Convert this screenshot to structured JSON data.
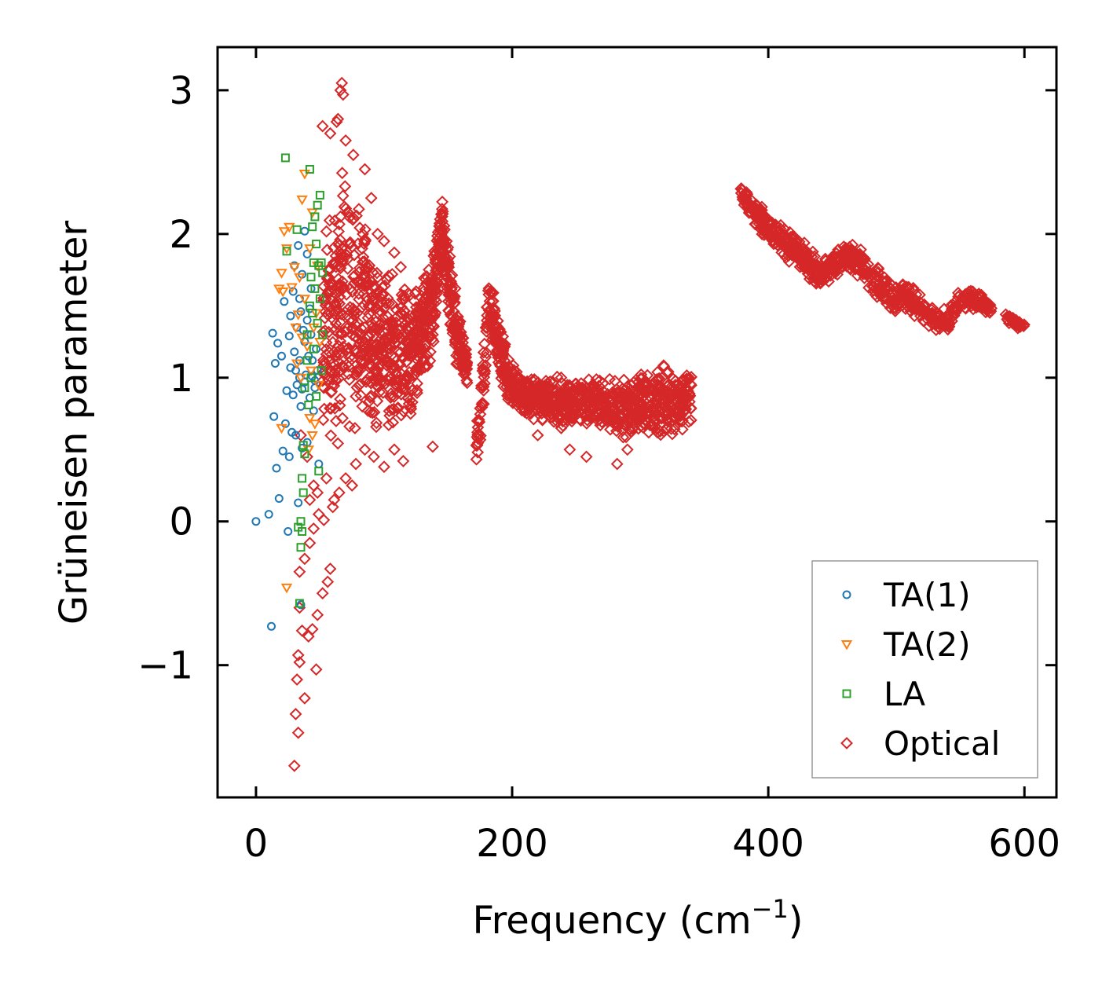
{
  "chart_data": {
    "type": "scatter",
    "title": "",
    "xlabel": "Frequency (cm",
    "xlabel_sup": "−1",
    "xlabel_end": ")",
    "ylabel": "Grüneisen parameter",
    "xlim": [
      -30,
      625
    ],
    "ylim": [
      -1.92,
      3.3
    ],
    "xticks": [
      0,
      200,
      400,
      600
    ],
    "xtick_labels": [
      "0",
      "200",
      "400",
      "600"
    ],
    "yticks": [
      -1,
      0,
      1,
      2,
      3
    ],
    "ytick_labels": [
      "−1",
      "0",
      "1",
      "2",
      "3"
    ],
    "grid": false,
    "legend_position": "lower-right",
    "series": [
      {
        "name": "TA(1)",
        "marker": "circle",
        "color": "#1f77b4",
        "points": [
          [
            0,
            0
          ],
          [
            10,
            0.05
          ],
          [
            12,
            -0.73
          ],
          [
            13,
            1.31
          ],
          [
            14,
            0.73
          ],
          [
            15,
            1.1
          ],
          [
            16,
            0.37
          ],
          [
            17,
            1.24
          ],
          [
            18,
            0.16
          ],
          [
            20,
            1.15
          ],
          [
            21,
            0.49
          ],
          [
            22,
            1.53
          ],
          [
            23,
            0.68
          ],
          [
            24,
            0.91
          ],
          [
            25,
            -0.07
          ],
          [
            26,
            1.29
          ],
          [
            26,
            0.45
          ],
          [
            27,
            1.43
          ],
          [
            27,
            1.07
          ],
          [
            28,
            0.62
          ],
          [
            29,
            1.6
          ],
          [
            29,
            0.88
          ],
          [
            30,
            1.78
          ],
          [
            30,
            1.18
          ],
          [
            31,
            1.05
          ],
          [
            31,
            0.6
          ],
          [
            32,
            1.35
          ],
          [
            32,
            0.95
          ],
          [
            33,
            1.92
          ],
          [
            33,
            0.13
          ],
          [
            34,
            1.55
          ],
          [
            34,
            1.12
          ],
          [
            35,
            1.46
          ],
          [
            35,
            0.8
          ],
          [
            36,
            0.51
          ],
          [
            36,
            1.72
          ],
          [
            37,
            1.33
          ],
          [
            38,
            0.97
          ],
          [
            38,
            1.25
          ],
          [
            39,
            1.02
          ],
          [
            40,
            1.4
          ],
          [
            40,
            0.55
          ],
          [
            41,
            1.15
          ],
          [
            42,
            0.86
          ],
          [
            43,
            1.62
          ],
          [
            43,
            1.3
          ],
          [
            44,
            1.01
          ],
          [
            45,
            0.77
          ],
          [
            46,
            0.93
          ],
          [
            47,
            1.2
          ],
          [
            48,
            1.05
          ],
          [
            49,
            0.4
          ],
          [
            38,
            2.02
          ],
          [
            40,
            1.86
          ],
          [
            34,
            1.0
          ],
          [
            36,
            0.92
          ],
          [
            42,
            1.48
          ],
          [
            44,
            1.12
          ],
          [
            46,
            0.98
          ],
          [
            35,
            -0.58
          ]
        ]
      },
      {
        "name": "TA(2)",
        "marker": "triangle-down",
        "color": "#ff7f0e",
        "points": [
          [
            18,
            1.62
          ],
          [
            20,
            1.73
          ],
          [
            20,
            0.65
          ],
          [
            21,
            1.6
          ],
          [
            22,
            2.02
          ],
          [
            24,
            1.9
          ],
          [
            24,
            -0.46
          ],
          [
            26,
            2.05
          ],
          [
            28,
            1.63
          ],
          [
            30,
            1.77
          ],
          [
            31,
            1.35
          ],
          [
            32,
            1.1
          ],
          [
            33,
            1.44
          ],
          [
            34,
            1.7
          ],
          [
            35,
            1.0
          ],
          [
            36,
            2.24
          ],
          [
            38,
            1.55
          ],
          [
            38,
            2.42
          ],
          [
            40,
            1.22
          ],
          [
            41,
            0.5
          ],
          [
            42,
            1.9
          ],
          [
            43,
            1.05
          ],
          [
            44,
            2.15
          ],
          [
            45,
            1.35
          ],
          [
            46,
            0.68
          ],
          [
            47,
            1.45
          ],
          [
            48,
            1.78
          ],
          [
            49,
            0.95
          ],
          [
            50,
            1.25
          ],
          [
            36,
            1.28
          ],
          [
            42,
            0.72
          ],
          [
            44,
            0.6
          ]
        ]
      },
      {
        "name": "LA",
        "marker": "square",
        "color": "#2ca02c",
        "points": [
          [
            23,
            2.53
          ],
          [
            24,
            1.88
          ],
          [
            32,
            2.03
          ],
          [
            33,
            -0.04
          ],
          [
            34,
            -0.57
          ],
          [
            35,
            -0.18
          ],
          [
            35,
            0.0
          ],
          [
            36,
            -0.07
          ],
          [
            36,
            0.3
          ],
          [
            37,
            0.2
          ],
          [
            37,
            0.53
          ],
          [
            38,
            0.47
          ],
          [
            38,
            0.93
          ],
          [
            40,
            1.12
          ],
          [
            40,
            1.3
          ],
          [
            41,
            0.81
          ],
          [
            42,
            1.5
          ],
          [
            42,
            2.45
          ],
          [
            43,
            1.7
          ],
          [
            43,
            1.0
          ],
          [
            44,
            2.05
          ],
          [
            44,
            1.45
          ],
          [
            45,
            1.8
          ],
          [
            45,
            1.2
          ],
          [
            46,
            2.12
          ],
          [
            46,
            1.62
          ],
          [
            47,
            1.93
          ],
          [
            47,
            0.87
          ],
          [
            48,
            2.2
          ],
          [
            48,
            1.38
          ],
          [
            49,
            1.78
          ],
          [
            49,
            0.35
          ],
          [
            50,
            2.27
          ],
          [
            50,
            1.55
          ],
          [
            51,
            1.05
          ],
          [
            51,
            1.8
          ],
          [
            52,
            1.3
          ],
          [
            52,
            1.73
          ]
        ]
      },
      {
        "name": "Optical",
        "marker": "diamond",
        "color": "#d62728",
        "outliers": [
          [
            30,
            -1.7
          ],
          [
            31,
            -1.34
          ],
          [
            33,
            -1.47
          ],
          [
            32,
            -1.1
          ],
          [
            34,
            -0.98
          ],
          [
            33,
            -0.93
          ],
          [
            36,
            -0.76
          ],
          [
            34,
            -0.6
          ],
          [
            38,
            -1.23
          ],
          [
            41,
            -0.8
          ],
          [
            44,
            -0.75
          ],
          [
            47,
            -1.03
          ],
          [
            48,
            -0.65
          ],
          [
            52,
            -0.5
          ],
          [
            56,
            -0.42
          ],
          [
            58,
            -0.33
          ],
          [
            34,
            -0.35
          ],
          [
            38,
            -0.26
          ],
          [
            42,
            -0.15
          ],
          [
            45,
            -0.05
          ],
          [
            49,
            0.05
          ],
          [
            53,
            0.01
          ],
          [
            60,
            0.1
          ],
          [
            65,
            0.2
          ],
          [
            70,
            0.3
          ],
          [
            75,
            0.25
          ],
          [
            78,
            0.4
          ],
          [
            61,
            0.15
          ],
          [
            66,
            3.0
          ],
          [
            67,
            3.05
          ],
          [
            68,
            2.97
          ],
          [
            64,
            2.8
          ],
          [
            63,
            2.78
          ],
          [
            52,
            2.75
          ],
          [
            58,
            2.7
          ],
          [
            70,
            2.65
          ],
          [
            76,
            2.55
          ],
          [
            85,
            2.45
          ],
          [
            90,
            2.25
          ],
          [
            95,
            2.0
          ],
          [
            100,
            1.95
          ],
          [
            108,
            1.87
          ],
          [
            113,
            1.77
          ],
          [
            125,
            1.6
          ],
          [
            138,
            0.52
          ],
          [
            115,
            0.42
          ],
          [
            108,
            0.5
          ],
          [
            100,
            0.38
          ],
          [
            92,
            0.45
          ],
          [
            85,
            0.5
          ],
          [
            42,
            0.15
          ],
          [
            45,
            0.25
          ],
          [
            55,
            0.3
          ],
          [
            35,
            0.6
          ],
          [
            40,
            0.45
          ],
          [
            48,
            0.2
          ],
          [
            290,
            0.5
          ],
          [
            282,
            0.4
          ],
          [
            258,
            0.45
          ],
          [
            245,
            0.5
          ],
          [
            220,
            0.6
          ]
        ],
        "curves": [
          {
            "x": [
              52,
              60,
              70,
              80,
              90,
              100,
              110,
              120,
              130,
              138,
              145,
              150,
              155,
              160,
              165
            ],
            "center": [
              1.3,
              1.4,
              1.55,
              1.45,
              1.3,
              1.2,
              1.15,
              1.2,
              1.3,
              1.5,
              2.05,
              1.7,
              1.4,
              1.2,
              1.05
            ],
            "spread": [
              0.75,
              0.95,
              1.0,
              0.85,
              0.72,
              0.62,
              0.55,
              0.5,
              0.42,
              0.35,
              0.25,
              0.3,
              0.28,
              0.2,
              0.15
            ],
            "n": 900
          },
          {
            "x": [
              172,
              175,
              178,
              182,
              186,
              190,
              195,
              200,
              205
            ],
            "center": [
              0.5,
              0.7,
              1.0,
              1.55,
              1.4,
              1.2,
              1.05,
              0.95,
              0.9
            ],
            "spread": [
              0.18,
              0.22,
              0.25,
              0.2,
              0.22,
              0.22,
              0.2,
              0.18,
              0.18
            ],
            "n": 200
          },
          {
            "x": [
              205,
              220,
              240,
              260,
              280,
              290,
              300,
              315,
              330,
              340
            ],
            "center": [
              0.9,
              0.85,
              0.82,
              0.85,
              0.8,
              0.78,
              0.82,
              0.85,
              0.85,
              0.85
            ],
            "spread": [
              0.15,
              0.18,
              0.2,
              0.18,
              0.2,
              0.22,
              0.27,
              0.28,
              0.25,
              0.2
            ],
            "n": 700
          },
          {
            "x": [
              378,
              390,
              400,
              410,
              420,
              430,
              440,
              450,
              460,
              470,
              480,
              490,
              500,
              510,
              520,
              530,
              540,
              550,
              560,
              570,
              575
            ],
            "center": [
              2.3,
              2.15,
              2.02,
              1.95,
              1.9,
              1.82,
              1.7,
              1.78,
              1.85,
              1.82,
              1.72,
              1.62,
              1.55,
              1.55,
              1.48,
              1.4,
              1.38,
              1.55,
              1.55,
              1.5,
              1.48
            ],
            "spread": [
              0.05,
              0.12,
              0.12,
              0.12,
              0.14,
              0.12,
              0.12,
              0.1,
              0.1,
              0.12,
              0.12,
              0.12,
              0.1,
              0.12,
              0.12,
              0.1,
              0.1,
              0.08,
              0.08,
              0.06,
              0.05
            ],
            "n": 650
          },
          {
            "x": [
              585,
              590,
              595,
              600
            ],
            "center": [
              1.42,
              1.4,
              1.37,
              1.35
            ],
            "spread": [
              0.03,
              0.03,
              0.03,
              0.03
            ],
            "n": 40
          }
        ]
      }
    ]
  }
}
